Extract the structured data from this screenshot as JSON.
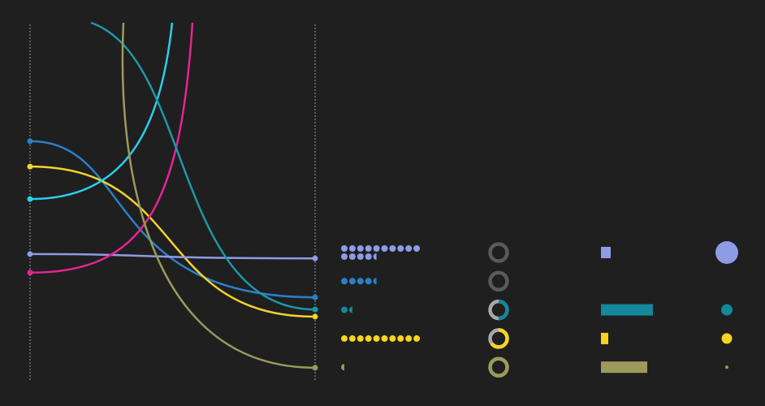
{
  "chart_data": [
    {
      "type": "line",
      "x": [
        0,
        1
      ],
      "xlim": [
        0,
        1
      ],
      "xticks": [
        0,
        1
      ],
      "ylim": [
        0,
        100
      ],
      "grid": true,
      "series": [
        {
          "color": "#2b7fc6",
          "values": [
            67.3,
            23.6
          ]
        },
        {
          "color": "#f2d22e",
          "values": [
            60.2,
            18.2
          ]
        },
        {
          "color": "#2ccdec",
          "values": [
            51.1,
            null
          ]
        },
        {
          "color": "#8e9ce6",
          "values": [
            35.7,
            34.5
          ]
        },
        {
          "color": "#e42592",
          "values": [
            30.5,
            null
          ]
        },
        {
          "color": "#1c98a8",
          "values": [
            null,
            20.2
          ]
        },
        {
          "color": "#9b9a5c",
          "values": [
            null,
            3.9
          ]
        }
      ]
    },
    {
      "type": "glyph",
      "colors": [
        "#8e9ce6",
        "#2b7fc6",
        "#12889a",
        "#f6d41f",
        "#9b9a5c"
      ],
      "dots": [
        14.5,
        4.5,
        1.5,
        10,
        0.5
      ],
      "shares": [
        0,
        0,
        0.5,
        0.65,
        1
      ],
      "bars": [
        12,
        null,
        64,
        9,
        57
      ],
      "barlim": [
        0,
        100
      ],
      "sizes": [
        14,
        null,
        7,
        6.5,
        2
      ]
    }
  ]
}
